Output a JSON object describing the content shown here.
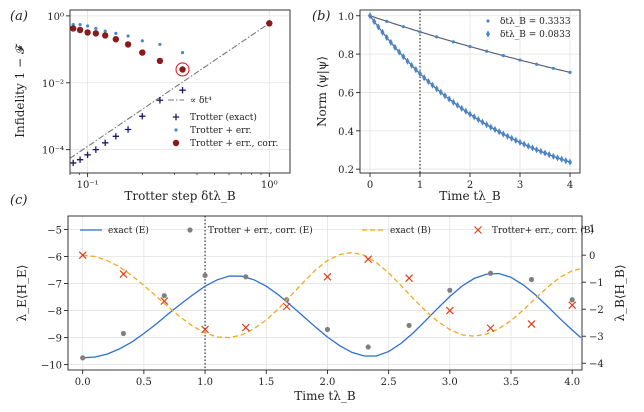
{
  "chart_data": [
    {
      "panel": "(a)",
      "type": "scatter",
      "xscale": "log",
      "yscale": "log",
      "xlim": [
        0.08,
        1.3
      ],
      "ylim": [
        2e-05,
        1.5
      ],
      "xlabel": "Trotter step δtλ_B",
      "ylabel": "Infidelity 1 − 𝓕",
      "xticks": [
        {
          "v": 0.1,
          "label": "10⁻¹"
        },
        {
          "v": 1,
          "label": "10⁰"
        }
      ],
      "yticks": [
        {
          "v": 1,
          "label": "10⁰"
        },
        {
          "v": 0.01,
          "label": "10⁻²"
        },
        {
          "v": 0.0001,
          "label": "10⁻⁴"
        }
      ],
      "grid": true,
      "legend": "bottom-right",
      "fit_line": {
        "label": "∝ δt⁴",
        "x": [
          0.08,
          1.0
        ],
        "y": [
          5.5e-05,
          0.6
        ],
        "color": "#777777"
      },
      "series": [
        {
          "name": "Trotter (exact)",
          "marker": "plus",
          "color": "#1a1a6e",
          "x": [
            0.0833,
            0.0909,
            0.1,
            0.111,
            0.125,
            0.143,
            0.167,
            0.2,
            0.25,
            0.333,
            1.0
          ],
          "y": [
            4e-05,
            5e-05,
            7e-05,
            0.0001,
            0.00016,
            0.00025,
            0.0004,
            0.001,
            0.003,
            0.006,
            0.6
          ]
        },
        {
          "name": "Trotter + err.",
          "marker": "dot",
          "color": "#4a86c8",
          "x": [
            0.0833,
            0.0909,
            0.1,
            0.111,
            0.125,
            0.143,
            0.167,
            0.2,
            0.25,
            0.333,
            1.0
          ],
          "y": [
            0.55,
            0.55,
            0.5,
            0.42,
            0.35,
            0.3,
            0.25,
            0.18,
            0.14,
            0.08,
            0.6
          ]
        },
        {
          "name": "Trotter + err., corr.",
          "marker": "circle",
          "color": "#8b1a1a",
          "x": [
            0.0833,
            0.0909,
            0.1,
            0.111,
            0.125,
            0.143,
            0.167,
            0.2,
            0.25,
            0.333,
            1.0
          ],
          "y": [
            0.42,
            0.38,
            0.32,
            0.3,
            0.26,
            0.2,
            0.14,
            0.08,
            0.045,
            0.025,
            0.6
          ]
        }
      ],
      "highlight": {
        "x": 0.333,
        "y": 0.025,
        "color": "#d62728"
      }
    },
    {
      "panel": "(b)",
      "type": "scatter",
      "xlim": [
        -0.2,
        4.2
      ],
      "ylim": [
        0.18,
        1.03
      ],
      "xlabel": "Time tλ_B",
      "ylabel": "Norm ⟨ψ|ψ⟩",
      "xticks": [
        0,
        1,
        2,
        3,
        4
      ],
      "yticks": [
        0.2,
        0.4,
        0.6,
        0.8,
        1.0
      ],
      "grid": true,
      "legend": "top-right",
      "vline": 1,
      "series": [
        {
          "name": "δtλ_B = 0.3333",
          "marker": "dot",
          "color": "#4a86c8",
          "decay": 0.0875,
          "x": [
            0,
            0.333,
            0.667,
            1.0,
            1.333,
            1.667,
            2.0,
            2.333,
            2.667,
            3.0,
            3.333,
            3.667,
            4.0
          ],
          "y": [
            1.0,
            0.971,
            0.943,
            0.916,
            0.89,
            0.864,
            0.839,
            0.815,
            0.792,
            0.769,
            0.747,
            0.726,
            0.705
          ]
        },
        {
          "name": "δtλ_B = 0.0833",
          "marker": "diamond",
          "color": "#4a86c8",
          "decay": 0.36,
          "x": [
            0,
            0.0833,
            0.1667,
            0.25,
            0.3333,
            0.4167,
            0.5,
            0.5833,
            0.6667,
            0.75,
            0.8333,
            0.9167,
            1.0,
            1.0833,
            1.1667,
            1.25,
            1.3333,
            1.4167,
            1.5,
            1.5833,
            1.6667,
            1.75,
            1.8333,
            1.9167,
            2.0,
            2.0833,
            2.1667,
            2.25,
            2.3333,
            2.4167,
            2.5,
            2.5833,
            2.6667,
            2.75,
            2.8333,
            2.9167,
            3.0,
            3.0833,
            3.1667,
            3.25,
            3.3333,
            3.4167,
            3.5,
            3.5833,
            3.6667,
            3.75,
            3.8333,
            3.9167,
            4.0
          ],
          "y": [
            1.0,
            0.97,
            0.942,
            0.914,
            0.887,
            0.861,
            0.835,
            0.811,
            0.787,
            0.763,
            0.741,
            0.719,
            0.698,
            0.677,
            0.657,
            0.638,
            0.619,
            0.601,
            0.583,
            0.566,
            0.549,
            0.533,
            0.517,
            0.502,
            0.487,
            0.473,
            0.459,
            0.445,
            0.432,
            0.419,
            0.407,
            0.395,
            0.383,
            0.372,
            0.361,
            0.35,
            0.34,
            0.33,
            0.32,
            0.311,
            0.301,
            0.293,
            0.284,
            0.276,
            0.267,
            0.259,
            0.252,
            0.244,
            0.237
          ]
        }
      ]
    },
    {
      "panel": "(c)",
      "type": "line",
      "xlim": [
        -0.12,
        4.08
      ],
      "ylim_left": [
        -10.2,
        -4.5
      ],
      "ylim_right": [
        -4.25,
        1.45
      ],
      "xlabel": "Time tλ_B",
      "ylabel_left": "λ_E⟨H_E⟩",
      "ylabel_right": "λ_B⟨H_B⟩",
      "xticks": [
        {
          "v": 0,
          "label": "0.0"
        },
        {
          "v": 0.5,
          "label": "0.5"
        },
        {
          "v": 1,
          "label": "1.0"
        },
        {
          "v": 1.5,
          "label": "1.5"
        },
        {
          "v": 2,
          "label": "2.0"
        },
        {
          "v": 2.5,
          "label": "2.5"
        },
        {
          "v": 3,
          "label": "3.0"
        },
        {
          "v": 3.5,
          "label": "3.5"
        },
        {
          "v": 4,
          "label": "4.0"
        }
      ],
      "yticks_left": [
        -10,
        -9,
        -8,
        -7,
        -6,
        -5
      ],
      "yticks_right": [
        -4,
        -3,
        -2,
        -1,
        0,
        1
      ],
      "grid": true,
      "legend": "top",
      "vline": 1,
      "series": [
        {
          "name": "exact (E)",
          "axis": "left",
          "style": "solid",
          "color": "#2e6fcf",
          "x": [
            0,
            0.1,
            0.2,
            0.3,
            0.4,
            0.5,
            0.6,
            0.7,
            0.8,
            0.9,
            1.0,
            1.1,
            1.2,
            1.3,
            1.4,
            1.5,
            1.6,
            1.7,
            1.8,
            1.9,
            2.0,
            2.1,
            2.2,
            2.3,
            2.4,
            2.5,
            2.6,
            2.7,
            2.8,
            2.9,
            3.0,
            3.1,
            3.2,
            3.3,
            3.4,
            3.5,
            3.6,
            3.7,
            3.8,
            3.9,
            4.0,
            4.07
          ],
          "y": [
            -9.75,
            -9.72,
            -9.61,
            -9.42,
            -9.17,
            -8.85,
            -8.5,
            -8.12,
            -7.76,
            -7.42,
            -7.1,
            -6.86,
            -6.72,
            -6.73,
            -6.86,
            -7.1,
            -7.42,
            -7.8,
            -8.2,
            -8.6,
            -8.98,
            -9.3,
            -9.55,
            -9.68,
            -9.68,
            -9.52,
            -9.22,
            -8.83,
            -8.38,
            -7.92,
            -7.48,
            -7.09,
            -6.81,
            -6.65,
            -6.63,
            -6.77,
            -7.05,
            -7.42,
            -7.85,
            -8.3,
            -8.72,
            -9.0
          ]
        },
        {
          "name": "Trotter + err., corr. (E)",
          "axis": "left",
          "style": "dot",
          "color": "#808080",
          "x": [
            0,
            0.333,
            0.667,
            1.0,
            1.333,
            1.667,
            2.0,
            2.333,
            2.667,
            3.0,
            3.333,
            3.667,
            4.0
          ],
          "y": [
            -9.75,
            -8.85,
            -7.45,
            -6.7,
            -6.75,
            -7.6,
            -8.7,
            -9.35,
            -8.55,
            -7.25,
            -6.62,
            -6.85,
            -7.6
          ]
        },
        {
          "name": "exact (B)",
          "axis": "right",
          "style": "dashed",
          "color": "#f0a820",
          "x": [
            0,
            0.1,
            0.2,
            0.3,
            0.4,
            0.5,
            0.6,
            0.7,
            0.8,
            0.9,
            1.0,
            1.1,
            1.2,
            1.3,
            1.4,
            1.5,
            1.6,
            1.7,
            1.8,
            1.9,
            2.0,
            2.1,
            2.2,
            2.3,
            2.4,
            2.5,
            2.6,
            2.7,
            2.8,
            2.9,
            3.0,
            3.1,
            3.2,
            3.3,
            3.4,
            3.5,
            3.6,
            3.7,
            3.8,
            3.9,
            4.0,
            4.07
          ],
          "y": [
            0,
            -0.05,
            -0.2,
            -0.43,
            -0.75,
            -1.12,
            -1.52,
            -1.92,
            -2.3,
            -2.63,
            -2.88,
            -3.03,
            -3.05,
            -2.95,
            -2.72,
            -2.4,
            -1.98,
            -1.5,
            -1.02,
            -0.56,
            -0.2,
            0.02,
            0.1,
            0.0,
            -0.27,
            -0.66,
            -1.12,
            -1.6,
            -2.05,
            -2.45,
            -2.75,
            -2.95,
            -3.0,
            -2.92,
            -2.72,
            -2.42,
            -2.03,
            -1.6,
            -1.18,
            -0.82,
            -0.58,
            -0.5
          ]
        },
        {
          "name": "Trotter+ err., corr. (B)",
          "axis": "right",
          "style": "cross",
          "color": "#e0401a",
          "x": [
            0,
            0.333,
            0.667,
            1.0,
            1.333,
            1.667,
            2.0,
            2.333,
            2.667,
            3.0,
            3.333,
            3.667,
            4.0
          ],
          "y": [
            0,
            -0.7,
            -1.7,
            -2.75,
            -2.68,
            -1.9,
            -0.8,
            -0.15,
            -0.85,
            -2.05,
            -2.7,
            -2.55,
            -1.85
          ]
        }
      ]
    }
  ]
}
